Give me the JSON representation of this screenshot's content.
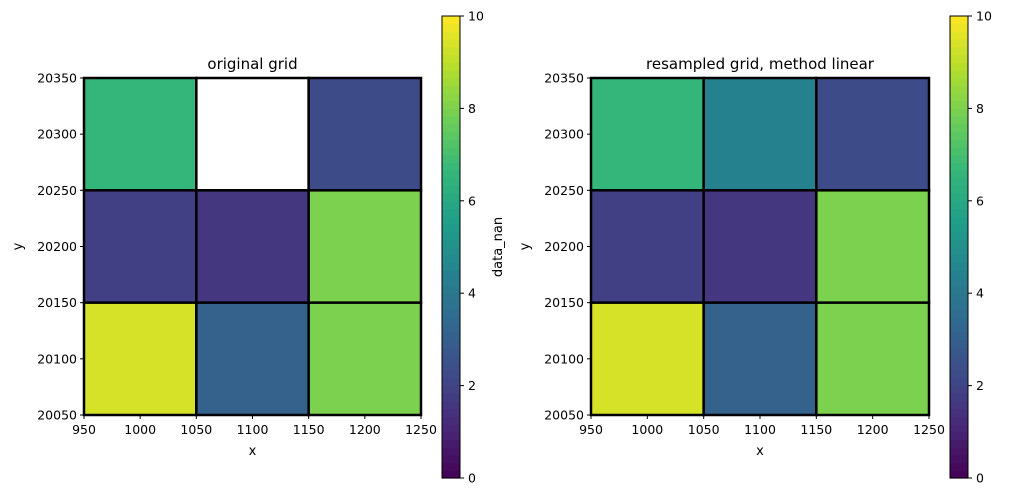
{
  "chart_data": [
    {
      "type": "heatmap",
      "title": "original grid",
      "xlabel": "x",
      "ylabel": "y",
      "x_edges": [
        950,
        1050,
        1150,
        1250
      ],
      "y_edges": [
        20050,
        20150,
        20250,
        20350
      ],
      "xlim": [
        950,
        1250
      ],
      "ylim": [
        20050,
        20350
      ],
      "xticks": [
        "950",
        "1000",
        "1050",
        "1100",
        "1150",
        "1200",
        "1250"
      ],
      "yticks": [
        "20050",
        "20100",
        "20150",
        "20200",
        "20250",
        "20300",
        "20350"
      ],
      "rows_top_to_bottom": [
        [
          6.6,
          null,
          2.3
        ],
        [
          1.9,
          1.6,
          8.0
        ],
        [
          9.4,
          3.1,
          8.0
        ]
      ],
      "colorbar": {
        "label": "data_nan",
        "range": [
          0,
          10
        ],
        "ticks": [
          "0",
          "2",
          "4",
          "6",
          "8",
          "10"
        ]
      }
    },
    {
      "type": "heatmap",
      "title": "resampled grid, method linear",
      "xlabel": "x",
      "ylabel": "y",
      "x_edges": [
        950,
        1050,
        1150,
        1250
      ],
      "y_edges": [
        20050,
        20150,
        20250,
        20350
      ],
      "xlim": [
        950,
        1250
      ],
      "ylim": [
        20050,
        20350
      ],
      "xticks": [
        "950",
        "1000",
        "1050",
        "1100",
        "1150",
        "1200",
        "1250"
      ],
      "yticks": [
        "20050",
        "20100",
        "20150",
        "20200",
        "20250",
        "20300",
        "20350"
      ],
      "rows_top_to_bottom": [
        [
          6.6,
          4.4,
          2.3
        ],
        [
          1.9,
          1.6,
          8.0
        ],
        [
          9.4,
          3.1,
          8.0
        ]
      ],
      "colorbar": {
        "label": "",
        "range": [
          0,
          10
        ],
        "ticks": [
          "0",
          "2",
          "4",
          "6",
          "8",
          "10"
        ]
      }
    }
  ]
}
